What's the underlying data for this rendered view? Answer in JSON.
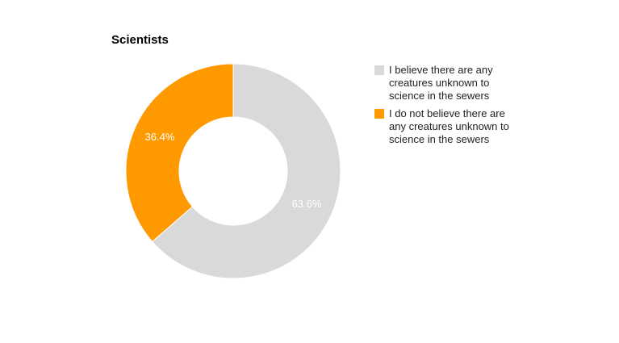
{
  "chart_data": {
    "type": "donut",
    "title": "Scientists",
    "categories": [
      "I believe there are any creatures unknown to science in the sewers",
      "I do not believe there are any creatures unknown to science in the sewers"
    ],
    "values": [
      63.6,
      36.4
    ],
    "value_labels": [
      "63.6%",
      "36.4%"
    ],
    "colors": [
      "#d9d9d9",
      "#ff9900"
    ],
    "legend": "right"
  }
}
